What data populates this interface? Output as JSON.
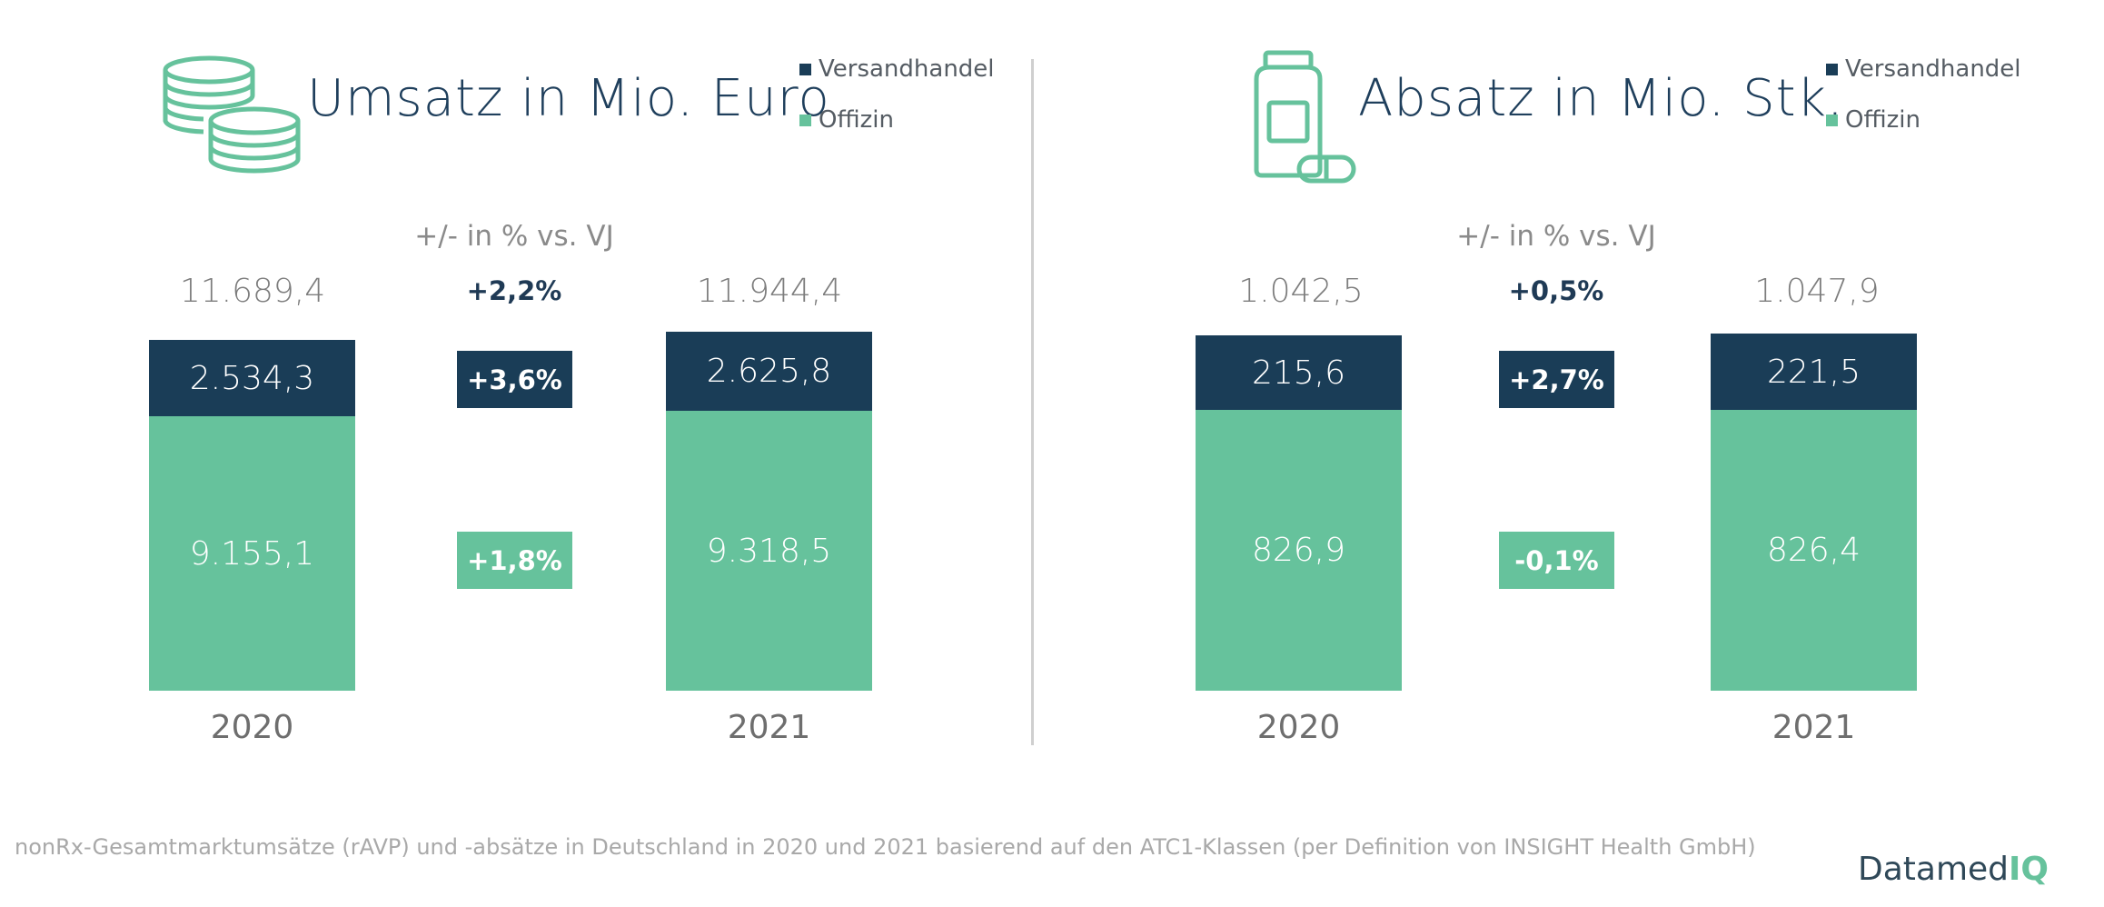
{
  "colors": {
    "versandhandel": "#1a3d57",
    "offizin": "#66c29c",
    "brand_accent": "#66c29c"
  },
  "legend": {
    "versandhandel": "Versandhandel",
    "offizin": "Offizin"
  },
  "change_title": "+/- in % vs. VJ",
  "chart_data": [
    {
      "type": "bar",
      "title": "Umsatz in Mio. Euro",
      "icon": "coins-icon",
      "categories": [
        "2020",
        "2021"
      ],
      "totals": [
        "11.689,4",
        "11.944,4"
      ],
      "series": [
        {
          "name": "Versandhandel",
          "values": [
            2534.3,
            2625.8
          ],
          "labels": [
            "2.534,3",
            "2.625,8"
          ]
        },
        {
          "name": "Offizin",
          "values": [
            9155.1,
            9318.5
          ],
          "labels": [
            "9.155,1",
            "9.318,5"
          ]
        }
      ],
      "changes": {
        "total": "+2,2%",
        "versandhandel": "+3,6%",
        "offizin": "+1,8%"
      }
    },
    {
      "type": "bar",
      "title": "Absatz in Mio. Stk.",
      "icon": "medicine-bottle-icon",
      "categories": [
        "2020",
        "2021"
      ],
      "totals": [
        "1.042,5",
        "1.047,9"
      ],
      "series": [
        {
          "name": "Versandhandel",
          "values": [
            215.6,
            221.5
          ],
          "labels": [
            "215,6",
            "221,5"
          ]
        },
        {
          "name": "Offizin",
          "values": [
            826.9,
            826.4
          ],
          "labels": [
            "826,9",
            "826,4"
          ]
        }
      ],
      "changes": {
        "total": "+0,5%",
        "versandhandel": "+2,7%",
        "offizin": "-0,1%"
      }
    }
  ],
  "footnote": "nonRx-Gesamtmarktumsätze (rAVP) und -absätze in Deutschland in 2020 und 2021 basierend auf den ATC1-Klassen (per Definition von INSIGHT Health GmbH)",
  "brand": {
    "name": "Datamed",
    "suffix": "IQ"
  }
}
